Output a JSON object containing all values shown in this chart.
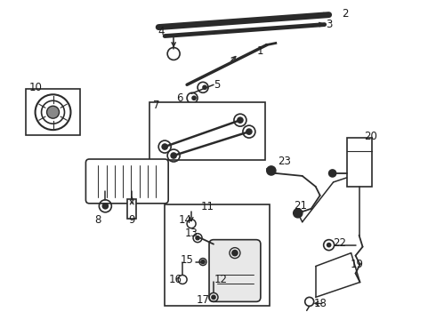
{
  "bg_color": "#ffffff",
  "line_color": "#2a2a2a",
  "label_color": "#1a1a1a",
  "label_fontsize": 7.5,
  "fig_width": 4.9,
  "fig_height": 3.6,
  "dpi": 100
}
